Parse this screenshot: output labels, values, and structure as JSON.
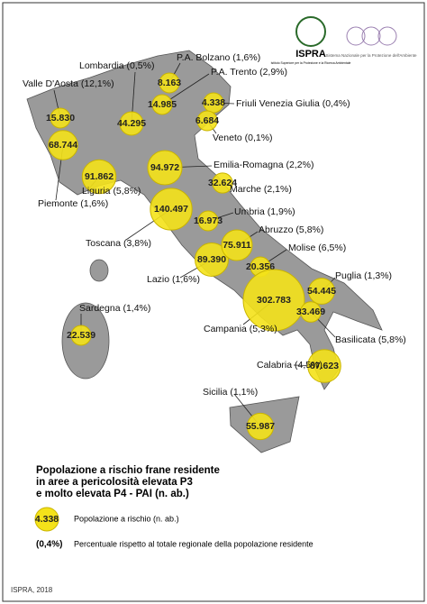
{
  "header": {
    "ispra_logo": "ISPRA",
    "ispra_subtitle": "Istituto Superiore per la Protezione e la Ricerca Ambientale",
    "snpa_logo": "Sistema Nazionale per la Protezione dell'Ambiente"
  },
  "regions": [
    {
      "label": "Valle D'Aosta (12,1%)",
      "value": 15830,
      "value_label": "15.830"
    },
    {
      "label": "Piemonte (1,6%)",
      "value": 68744,
      "value_label": "68.744"
    },
    {
      "label": "Lombardia (0,5%)",
      "value": 44295,
      "value_label": "44.295"
    },
    {
      "label": "P.A. Bolzano (1,6%)",
      "value": 8163,
      "value_label": "8.163"
    },
    {
      "label": "P.A. Trento (2,9%)",
      "value": 14985,
      "value_label": "14.985"
    },
    {
      "label": "Friuli Venezia Giulia (0,4%)",
      "value": 4338,
      "value_label": "4.338"
    },
    {
      "label": "Veneto (0,1%)",
      "value": 6684,
      "value_label": "6.684"
    },
    {
      "label": "Liguria (5,8%)",
      "value": 91862,
      "value_label": "91.862"
    },
    {
      "label": "Emilia-Romagna (2,2%)",
      "value": 94972,
      "value_label": "94.972"
    },
    {
      "label": "Toscana (3,8%)",
      "value": 140497,
      "value_label": "140.497"
    },
    {
      "label": "Marche (2,1%)",
      "value": 32624,
      "value_label": "32.624"
    },
    {
      "label": "Umbria (1,9%)",
      "value": 16973,
      "value_label": "16.973"
    },
    {
      "label": "Lazio (1,6%)",
      "value": 89390,
      "value_label": "89.390"
    },
    {
      "label": "Abruzzo (5,8%)",
      "value": 75911,
      "value_label": "75.911"
    },
    {
      "label": "Molise (6,5%)",
      "value": 20356,
      "value_label": "20.356"
    },
    {
      "label": "Campania (5,3%)",
      "value": 302783,
      "value_label": "302.783"
    },
    {
      "label": "Puglia (1,3%)",
      "value": 54445,
      "value_label": "54.445"
    },
    {
      "label": "Basilicata (5,8%)",
      "value": 33469,
      "value_label": "33.469"
    },
    {
      "label": "Calabria (4,5%)",
      "value": 87623,
      "value_label": "87.623"
    },
    {
      "label": "Sicilia (1,1%)",
      "value": 55987,
      "value_label": "55.987"
    },
    {
      "label": "Sardegna (1,4%)",
      "value": 22539,
      "value_label": "22.539"
    }
  ],
  "legend": {
    "title_lines": [
      "Popolazione a rischio frane residente",
      "in aree a pericolosità elevata P3",
      "e molto elevata P4 - PAI (n. ab.)"
    ],
    "sample_value": "4.338",
    "sample_text": "Popolazione a rischio (n. ab.)",
    "percent_sample": "(0,4%)",
    "percent_text": "Percentuale rispetto al totale regionale della popolazione residente"
  },
  "footer": "ISPRA, 2018"
}
